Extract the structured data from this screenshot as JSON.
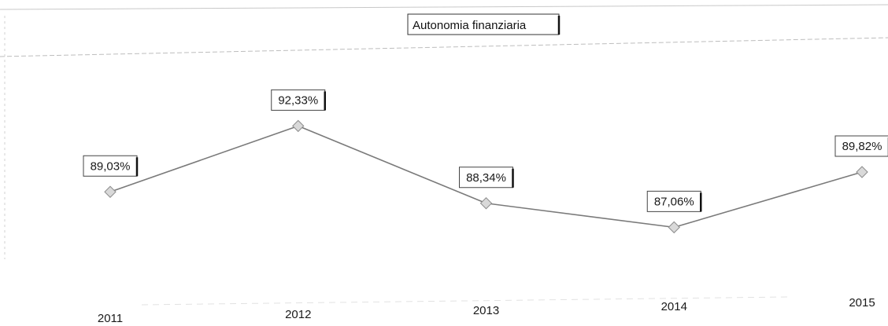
{
  "chart_data": {
    "type": "line",
    "title": "Autonomia finanziaria",
    "categories": [
      "2011",
      "2012",
      "2013",
      "2014",
      "2015"
    ],
    "series": [
      {
        "values": [
          89.03,
          92.33,
          88.34,
          87.06,
          89.82
        ],
        "data_labels": [
          "89,03%",
          "92,33%",
          "88,34%",
          "87,06%",
          "89,82%"
        ]
      }
    ],
    "ylim": [
      83,
      95
    ],
    "grid": false,
    "legend": "none",
    "line_color": "#7a7a7a",
    "marker": "diamond",
    "marker_color": "#d9d9d9"
  }
}
